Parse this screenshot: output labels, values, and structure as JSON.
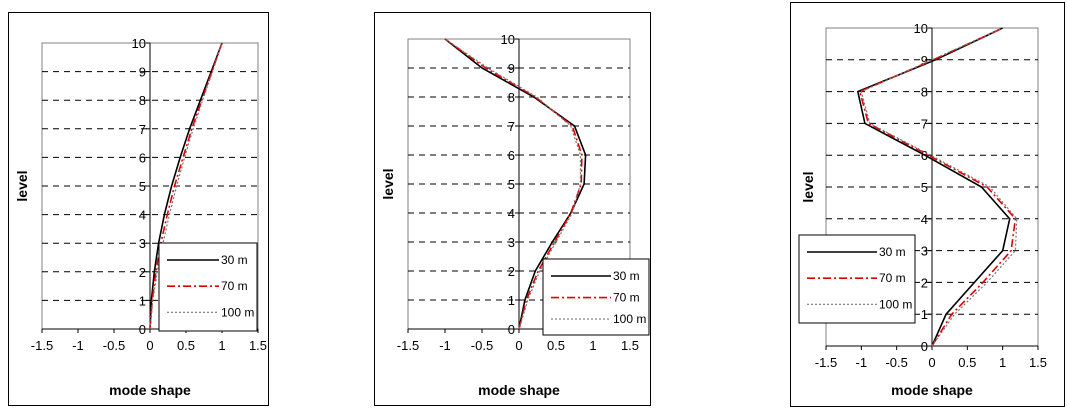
{
  "chart_data": [
    {
      "type": "line",
      "xlabel": "mode shape",
      "ylabel": "level",
      "xlim": [
        -1.5,
        1.5
      ],
      "ylim": [
        0,
        10
      ],
      "xticks": [
        "-1.5",
        "-1",
        "-0.5",
        "0",
        "0.5",
        "1",
        "1.5"
      ],
      "yticks": [
        "0",
        "1",
        "2",
        "3",
        "4",
        "5",
        "6",
        "7",
        "8",
        "9",
        "10"
      ],
      "grid": "horizontal dashed",
      "legend": "bottom-right",
      "series": [
        {
          "name": "30 m",
          "color": "#000000",
          "style": "solid",
          "points": [
            [
              0,
              0
            ],
            [
              0.02,
              1
            ],
            [
              0.06,
              2
            ],
            [
              0.12,
              3
            ],
            [
              0.2,
              4
            ],
            [
              0.3,
              5
            ],
            [
              0.42,
              6
            ],
            [
              0.55,
              7
            ],
            [
              0.7,
              8
            ],
            [
              0.85,
              9
            ],
            [
              1,
              10
            ]
          ]
        },
        {
          "name": "70 m",
          "color": "#e00000",
          "style": "dashdot",
          "points": [
            [
              0,
              0
            ],
            [
              0.03,
              1
            ],
            [
              0.08,
              2
            ],
            [
              0.15,
              3
            ],
            [
              0.24,
              4
            ],
            [
              0.34,
              5
            ],
            [
              0.46,
              6
            ],
            [
              0.58,
              7
            ],
            [
              0.72,
              8
            ],
            [
              0.86,
              9
            ],
            [
              1,
              10
            ]
          ]
        },
        {
          "name": "100 m",
          "color": "#777777",
          "style": "dotted",
          "points": [
            [
              0,
              0
            ],
            [
              0.04,
              1
            ],
            [
              0.1,
              2
            ],
            [
              0.18,
              3
            ],
            [
              0.27,
              4
            ],
            [
              0.37,
              5
            ],
            [
              0.48,
              6
            ],
            [
              0.6,
              7
            ],
            [
              0.73,
              8
            ],
            [
              0.87,
              9
            ],
            [
              1,
              10
            ]
          ]
        }
      ]
    },
    {
      "type": "line",
      "xlabel": "mode shape",
      "ylabel": "level",
      "xlim": [
        -1.5,
        1.5
      ],
      "ylim": [
        0,
        10
      ],
      "xticks": [
        "-1.5",
        "-1",
        "-0.5",
        "0",
        "0.5",
        "1",
        "1.5"
      ],
      "yticks": [
        "0",
        "1",
        "2",
        "3",
        "4",
        "5",
        "6",
        "7",
        "8",
        "9",
        "10"
      ],
      "grid": "horizontal dashed",
      "legend": "bottom-right",
      "series": [
        {
          "name": "30 m",
          "color": "#000000",
          "style": "solid",
          "points": [
            [
              0,
              0
            ],
            [
              0.08,
              1
            ],
            [
              0.22,
              2
            ],
            [
              0.45,
              3
            ],
            [
              0.7,
              4
            ],
            [
              0.88,
              5
            ],
            [
              0.9,
              6
            ],
            [
              0.75,
              7
            ],
            [
              0.2,
              8
            ],
            [
              -0.5,
              9
            ],
            [
              -1,
              10
            ]
          ]
        },
        {
          "name": "70 m",
          "color": "#e00000",
          "style": "dashdot",
          "points": [
            [
              0,
              0
            ],
            [
              0.1,
              1
            ],
            [
              0.26,
              2
            ],
            [
              0.48,
              3
            ],
            [
              0.7,
              4
            ],
            [
              0.84,
              5
            ],
            [
              0.85,
              6
            ],
            [
              0.72,
              7
            ],
            [
              0.22,
              8
            ],
            [
              -0.45,
              9
            ],
            [
              -1,
              10
            ]
          ]
        },
        {
          "name": "100 m",
          "color": "#777777",
          "style": "dotted",
          "points": [
            [
              0,
              0
            ],
            [
              0.12,
              1
            ],
            [
              0.28,
              2
            ],
            [
              0.5,
              3
            ],
            [
              0.72,
              4
            ],
            [
              0.83,
              5
            ],
            [
              0.83,
              6
            ],
            [
              0.7,
              7
            ],
            [
              0.24,
              8
            ],
            [
              -0.42,
              9
            ],
            [
              -1,
              10
            ]
          ]
        }
      ]
    },
    {
      "type": "line",
      "xlabel": "mode shape",
      "ylabel": "level",
      "xlim": [
        -1.5,
        1.5
      ],
      "ylim": [
        0,
        10
      ],
      "xticks": [
        "-1.5",
        "-1",
        "-0.5",
        "0",
        "0.5",
        "1",
        "1.5"
      ],
      "yticks": [
        "0",
        "1",
        "2",
        "3",
        "4",
        "5",
        "6",
        "7",
        "8",
        "9",
        "10"
      ],
      "grid": "horizontal dashed",
      "legend": "bottom-left",
      "series": [
        {
          "name": "30 m",
          "color": "#000000",
          "style": "solid",
          "points": [
            [
              0,
              0
            ],
            [
              0.2,
              1
            ],
            [
              0.6,
              2
            ],
            [
              1.0,
              3
            ],
            [
              1.1,
              4
            ],
            [
              0.7,
              5
            ],
            [
              -0.1,
              6
            ],
            [
              -0.95,
              7
            ],
            [
              -1.05,
              8
            ],
            [
              0.05,
              9
            ],
            [
              1,
              10
            ]
          ]
        },
        {
          "name": "70 m",
          "color": "#e00000",
          "style": "dashdot",
          "points": [
            [
              0,
              0
            ],
            [
              0.28,
              1
            ],
            [
              0.72,
              2
            ],
            [
              1.12,
              3
            ],
            [
              1.18,
              4
            ],
            [
              0.78,
              5
            ],
            [
              -0.05,
              6
            ],
            [
              -0.9,
              7
            ],
            [
              -1.02,
              8
            ],
            [
              0.02,
              9
            ],
            [
              1,
              10
            ]
          ]
        },
        {
          "name": "100 m",
          "color": "#777777",
          "style": "dotted",
          "points": [
            [
              0,
              0
            ],
            [
              0.32,
              1
            ],
            [
              0.78,
              2
            ],
            [
              1.18,
              3
            ],
            [
              1.2,
              4
            ],
            [
              0.82,
              5
            ],
            [
              -0.02,
              6
            ],
            [
              -0.88,
              7
            ],
            [
              -1.0,
              8
            ],
            [
              0.0,
              9
            ],
            [
              1,
              10
            ]
          ]
        }
      ]
    }
  ]
}
